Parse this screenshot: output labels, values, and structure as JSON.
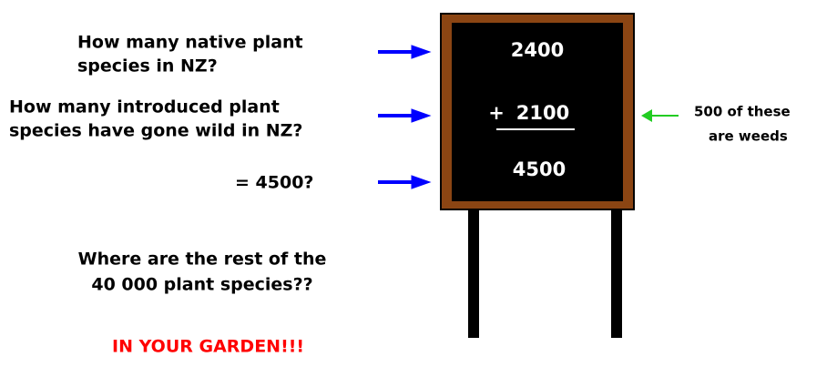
{
  "questions": [
    {
      "lines": [
        "How many native plant",
        "species in NZ?"
      ]
    },
    {
      "lines": [
        "How many introduced plant",
        "species have gone wild in NZ?"
      ]
    },
    {
      "lines": [
        "= 4500?"
      ]
    }
  ],
  "board": {
    "top": "2400",
    "sign": "+",
    "added": "2100",
    "total": "4500"
  },
  "note": {
    "lines": [
      "500 of these",
      "are weeds"
    ]
  },
  "question": {
    "lines": [
      "Where are the rest of the",
      "40 000 plant species??"
    ]
  },
  "answer": "IN YOUR GARDEN!!!"
}
